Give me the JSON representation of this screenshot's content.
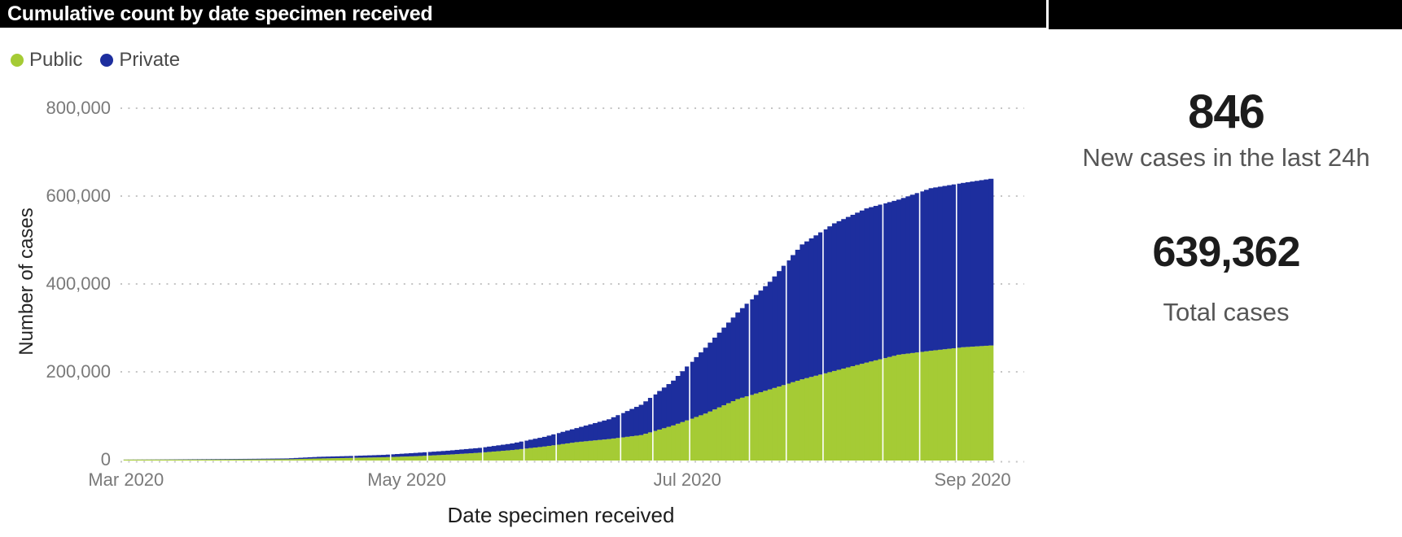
{
  "header": {
    "title": "Cumulative count by date specimen received"
  },
  "legend": [
    {
      "label": "Public",
      "color": "#a5cb35"
    },
    {
      "label": "Private",
      "color": "#1d2e9e"
    }
  ],
  "kpis": [
    {
      "value": "846",
      "label": "New cases in the last 24h"
    },
    {
      "value": "639,362",
      "label": "Total cases"
    }
  ],
  "chart_data": {
    "type": "bar",
    "stacked": true,
    "title": "Cumulative count by date specimen received",
    "xlabel": "Date specimen received",
    "ylabel": "Number of cases",
    "start_date": "2020-03-01",
    "end_date": "2020-09-05",
    "num_days": 189,
    "ylim": [
      0,
      800000
    ],
    "y_tick_values": [
      800000,
      600000,
      400000,
      200000,
      0
    ],
    "y_tick_labels": [
      "800,000",
      "600,000",
      "400,000",
      "200,000",
      "0"
    ],
    "x_tick_labels": [
      "Mar 2020",
      "May 2020",
      "Jul 2020",
      "Sep 2020"
    ],
    "x_tick_days": [
      0,
      61,
      122,
      184
    ],
    "grid": "dotted-horizontal",
    "legend_position": "top-left",
    "colors": {
      "public": "#a5cb35",
      "private": "#1d2e9e",
      "grid": "#c4c4c4"
    },
    "separator_days": [
      50,
      58,
      66,
      78,
      87,
      94,
      108,
      115,
      123,
      136,
      144,
      152,
      165,
      173,
      181
    ],
    "series": [
      {
        "name": "Public",
        "role": "bottom"
      },
      {
        "name": "Private",
        "role": "top"
      }
    ],
    "anchors": [
      {
        "date": "2020-03-01",
        "day": 0,
        "public": 100,
        "private": 200
      },
      {
        "date": "2020-03-08",
        "day": 7,
        "public": 200,
        "private": 400
      },
      {
        "date": "2020-03-15",
        "day": 14,
        "public": 350,
        "private": 750
      },
      {
        "date": "2020-03-22",
        "day": 21,
        "public": 500,
        "private": 1100
      },
      {
        "date": "2020-03-29",
        "day": 28,
        "public": 700,
        "private": 1400
      },
      {
        "date": "2020-04-05",
        "day": 35,
        "public": 1000,
        "private": 1900
      },
      {
        "date": "2020-04-12",
        "day": 42,
        "public": 2800,
        "private": 3800
      },
      {
        "date": "2020-04-19",
        "day": 49,
        "public": 4200,
        "private": 4300
      },
      {
        "date": "2020-04-26",
        "day": 56,
        "public": 5600,
        "private": 5400
      },
      {
        "date": "2020-05-03",
        "day": 63,
        "public": 8000,
        "private": 7500
      },
      {
        "date": "2020-05-10",
        "day": 70,
        "public": 11500,
        "private": 9000
      },
      {
        "date": "2020-05-17",
        "day": 77,
        "public": 16000,
        "private": 11000
      },
      {
        "date": "2020-05-24",
        "day": 84,
        "public": 22000,
        "private": 15000
      },
      {
        "date": "2020-05-31",
        "day": 91,
        "public": 30000,
        "private": 22000
      },
      {
        "date": "2020-06-07",
        "day": 98,
        "public": 40000,
        "private": 32000
      },
      {
        "date": "2020-06-14",
        "day": 105,
        "public": 47000,
        "private": 45000
      },
      {
        "date": "2020-06-21",
        "day": 112,
        "public": 56000,
        "private": 69000
      },
      {
        "date": "2020-06-28",
        "day": 119,
        "public": 78000,
        "private": 102000
      },
      {
        "date": "2020-07-05",
        "day": 126,
        "public": 105000,
        "private": 150000
      },
      {
        "date": "2020-07-12",
        "day": 133,
        "public": 138000,
        "private": 197000
      },
      {
        "date": "2020-07-19",
        "day": 140,
        "public": 160000,
        "private": 245000
      },
      {
        "date": "2020-07-26",
        "day": 147,
        "public": 183000,
        "private": 307000
      },
      {
        "date": "2020-08-02",
        "day": 154,
        "public": 202000,
        "private": 336000
      },
      {
        "date": "2020-08-09",
        "day": 161,
        "public": 221000,
        "private": 351000
      },
      {
        "date": "2020-08-16",
        "day": 168,
        "public": 239000,
        "private": 353000
      },
      {
        "date": "2020-08-23",
        "day": 175,
        "public": 248000,
        "private": 370000
      },
      {
        "date": "2020-08-30",
        "day": 182,
        "public": 256000,
        "private": 374000
      },
      {
        "date": "2020-09-05",
        "day": 188,
        "public": 260000,
        "private": 379362
      }
    ]
  }
}
